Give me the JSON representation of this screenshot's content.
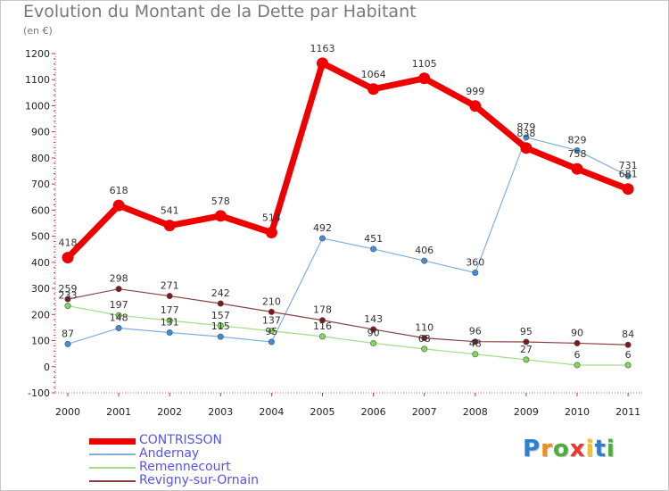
{
  "title": "Evolution du Montant de la Dette par Habitant",
  "unit": "(en €)",
  "logo": {
    "text": "Proxiti",
    "letters": [
      "P",
      "r",
      "o",
      "x",
      "i",
      "t",
      "i"
    ],
    "colors": [
      "#2b7fd4",
      "#f28c1a",
      "#4caf3a",
      "#e53935",
      "#f6c12b",
      "#2b7fd4",
      "#4caf3a"
    ]
  },
  "chart_data": {
    "type": "line",
    "title": "Evolution du Montant de la Dette par Habitant",
    "ylabel": "(en €)",
    "xlabel": "",
    "x": [
      "2000",
      "2001",
      "2002",
      "2003",
      "2004",
      "2005",
      "2006",
      "2007",
      "2008",
      "2009",
      "2010",
      "2011"
    ],
    "ylim": [
      -100,
      1200
    ],
    "yticks": [
      -100,
      0,
      100,
      200,
      300,
      400,
      500,
      600,
      700,
      800,
      900,
      1000,
      1100,
      1200
    ],
    "grid": false,
    "legend_position": "bottom-left",
    "series": [
      {
        "name": "CONTRISSON",
        "color": "#ee0000",
        "line_color": "#ee0000",
        "label_color": "#5555ee",
        "width": 7,
        "values": [
          418,
          618,
          541,
          578,
          514,
          1163,
          1064,
          1105,
          999,
          838,
          758,
          681
        ]
      },
      {
        "name": "Andernay",
        "color": "#3e8ed8",
        "line_color": "#7fb0dd",
        "label_color": "#5555ee",
        "width": 1.2,
        "values": [
          87,
          148,
          131,
          115,
          95,
          492,
          451,
          406,
          360,
          879,
          829,
          731
        ]
      },
      {
        "name": "Remennecourt",
        "color": "#7ed957",
        "line_color": "#a3dc86",
        "label_color": "#5555ee",
        "width": 1.2,
        "values": [
          233,
          197,
          177,
          157,
          137,
          116,
          90,
          68,
          48,
          27,
          6,
          6
        ]
      },
      {
        "name": "Revigny-sur-Ornain",
        "color": "#7a1a1a",
        "line_color": "#8a4040",
        "label_color": "#5555ee",
        "width": 1.2,
        "values": [
          259,
          298,
          271,
          242,
          210,
          178,
          143,
          110,
          96,
          95,
          90,
          84
        ]
      }
    ]
  }
}
